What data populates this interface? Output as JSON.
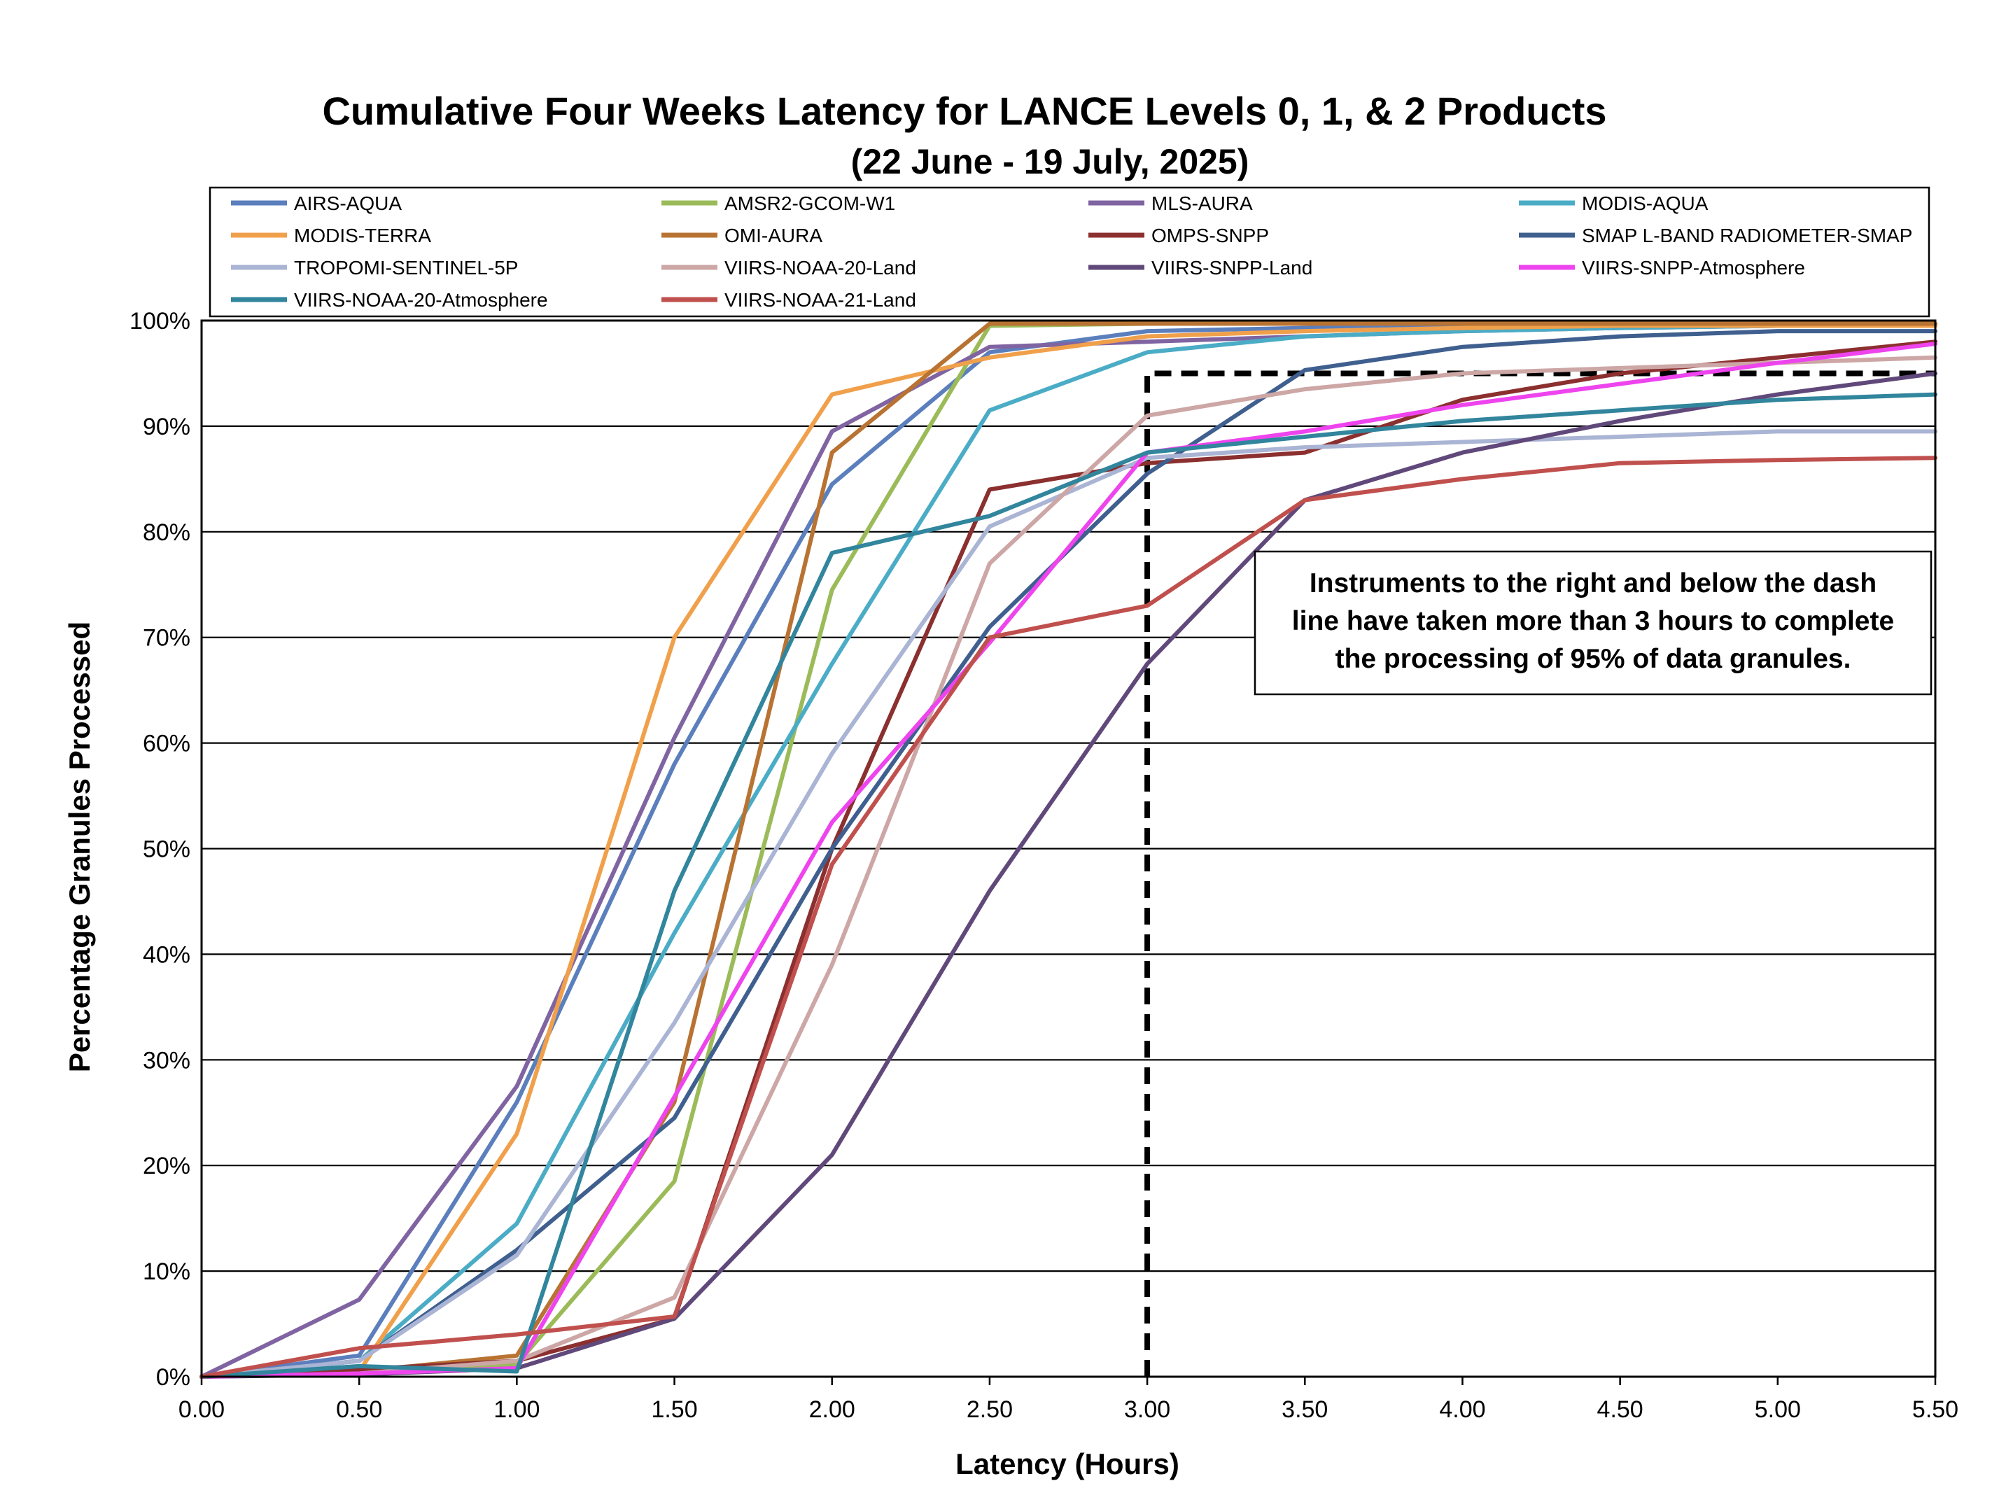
{
  "chart_data": {
    "type": "line",
    "title": "Cumulative Four Weeks Latency  for LANCE Levels 0, 1, & 2 Products",
    "subtitle": "(22  June   -  19  July,  2025)",
    "xlabel": "Latency (Hours)",
    "ylabel": "Percentage Granules Processed",
    "x": [
      0,
      0.5,
      1.0,
      1.5,
      2.0,
      2.5,
      3.0,
      3.5,
      4.0,
      4.5,
      5.0,
      5.5
    ],
    "xlim": [
      0,
      5.5
    ],
    "ylim": [
      0,
      100
    ],
    "x_ticks": [
      "0.00",
      "0.50",
      "1.00",
      "1.50",
      "2.00",
      "2.50",
      "3.00",
      "3.50",
      "4.00",
      "4.50",
      "5.00",
      "5.50"
    ],
    "y_ticks": [
      "0%",
      "10%",
      "20%",
      "30%",
      "40%",
      "50%",
      "60%",
      "70%",
      "80%",
      "90%",
      "100%"
    ],
    "grid": "horizontal",
    "legend_position": "top",
    "series": [
      {
        "name": "AIRS-AQUA",
        "color": "#5b7fbd",
        "values": [
          0,
          2,
          26,
          58,
          84.5,
          97,
          99,
          99.3,
          99.5,
          99.6,
          99.6,
          99.6
        ]
      },
      {
        "name": "AMSR2-GCOM-W1",
        "color": "#9bbb59",
        "values": [
          0,
          0.5,
          1.2,
          18.5,
          74.5,
          99.5,
          99.7,
          99.7,
          99.7,
          99.7,
          99.7,
          99.7
        ]
      },
      {
        "name": "MLS-AURA",
        "color": "#8064a2",
        "values": [
          0,
          7.3,
          27.5,
          60.5,
          89.5,
          97.5,
          98,
          98.5,
          99,
          99.3,
          99.5,
          99.5
        ]
      },
      {
        "name": "MODIS-AQUA",
        "color": "#4bacc6",
        "values": [
          0,
          1.5,
          14.5,
          42,
          67.5,
          91.5,
          97,
          98.5,
          99,
          99.3,
          99.5,
          99.5
        ]
      },
      {
        "name": "MODIS-TERRA",
        "color": "#f0a04b",
        "values": [
          0,
          0.5,
          23,
          70,
          93,
          96.5,
          98.5,
          99,
          99.3,
          99.5,
          99.5,
          99.5
        ]
      },
      {
        "name": "OMI-AURA",
        "color": "#b87333",
        "values": [
          0,
          0.5,
          2,
          26,
          87.5,
          99.7,
          99.7,
          99.7,
          99.7,
          99.7,
          99.7,
          99.7
        ]
      },
      {
        "name": "OMPS-SNPP",
        "color": "#8b2f2f",
        "values": [
          0,
          0.7,
          1.5,
          5.5,
          50,
          84,
          86.5,
          87.5,
          92.5,
          95,
          96.5,
          98
        ]
      },
      {
        "name": "SMAP L-BAND RADIOMETER-SMAP",
        "color": "#3f5f8f",
        "values": [
          0,
          1.5,
          12,
          24.5,
          50,
          71,
          85.5,
          95.3,
          97.5,
          98.5,
          99,
          99
        ]
      },
      {
        "name": "TROPOMI-SENTINEL-5P",
        "color": "#aab4d4",
        "values": [
          0,
          1.5,
          11.5,
          33.5,
          59,
          80.5,
          87,
          88,
          88.5,
          89,
          89.5,
          89.5
        ]
      },
      {
        "name": "VIIRS-NOAA-20-Land",
        "color": "#cda6a6",
        "values": [
          0,
          0.3,
          1.5,
          7.5,
          39,
          77,
          91,
          93.5,
          95,
          95.5,
          96,
          96.5
        ]
      },
      {
        "name": "VIIRS-SNPP-Land",
        "color": "#60497a",
        "values": [
          0,
          0.2,
          0.8,
          5.5,
          21,
          46,
          67.5,
          83,
          87.5,
          90.5,
          93,
          95
        ]
      },
      {
        "name": "VIIRS-SNPP-Atmosphere",
        "color": "#ee44ee",
        "values": [
          0,
          0.3,
          0.8,
          26.5,
          52.5,
          69.5,
          87.5,
          89.5,
          92,
          94,
          96,
          97.8
        ]
      },
      {
        "name": "VIIRS-NOAA-20-Atmosphere",
        "color": "#31859c",
        "values": [
          0,
          1,
          0.5,
          46,
          78,
          81.5,
          87.5,
          89,
          90.5,
          91.5,
          92.5,
          93
        ]
      },
      {
        "name": "VIIRS-NOAA-21-Land",
        "color": "#c0504d",
        "values": [
          0,
          2.7,
          4,
          5.7,
          48.5,
          70,
          73,
          83,
          85,
          86.5,
          86.8,
          87
        ]
      }
    ],
    "threshold_line": {
      "x": 3.0,
      "y": 95
    },
    "annotation": {
      "lines": [
        "Instruments to the right and below the dash",
        "line have taken more than 3 hours to complete",
        "the processing of 95% of data granules."
      ]
    }
  }
}
